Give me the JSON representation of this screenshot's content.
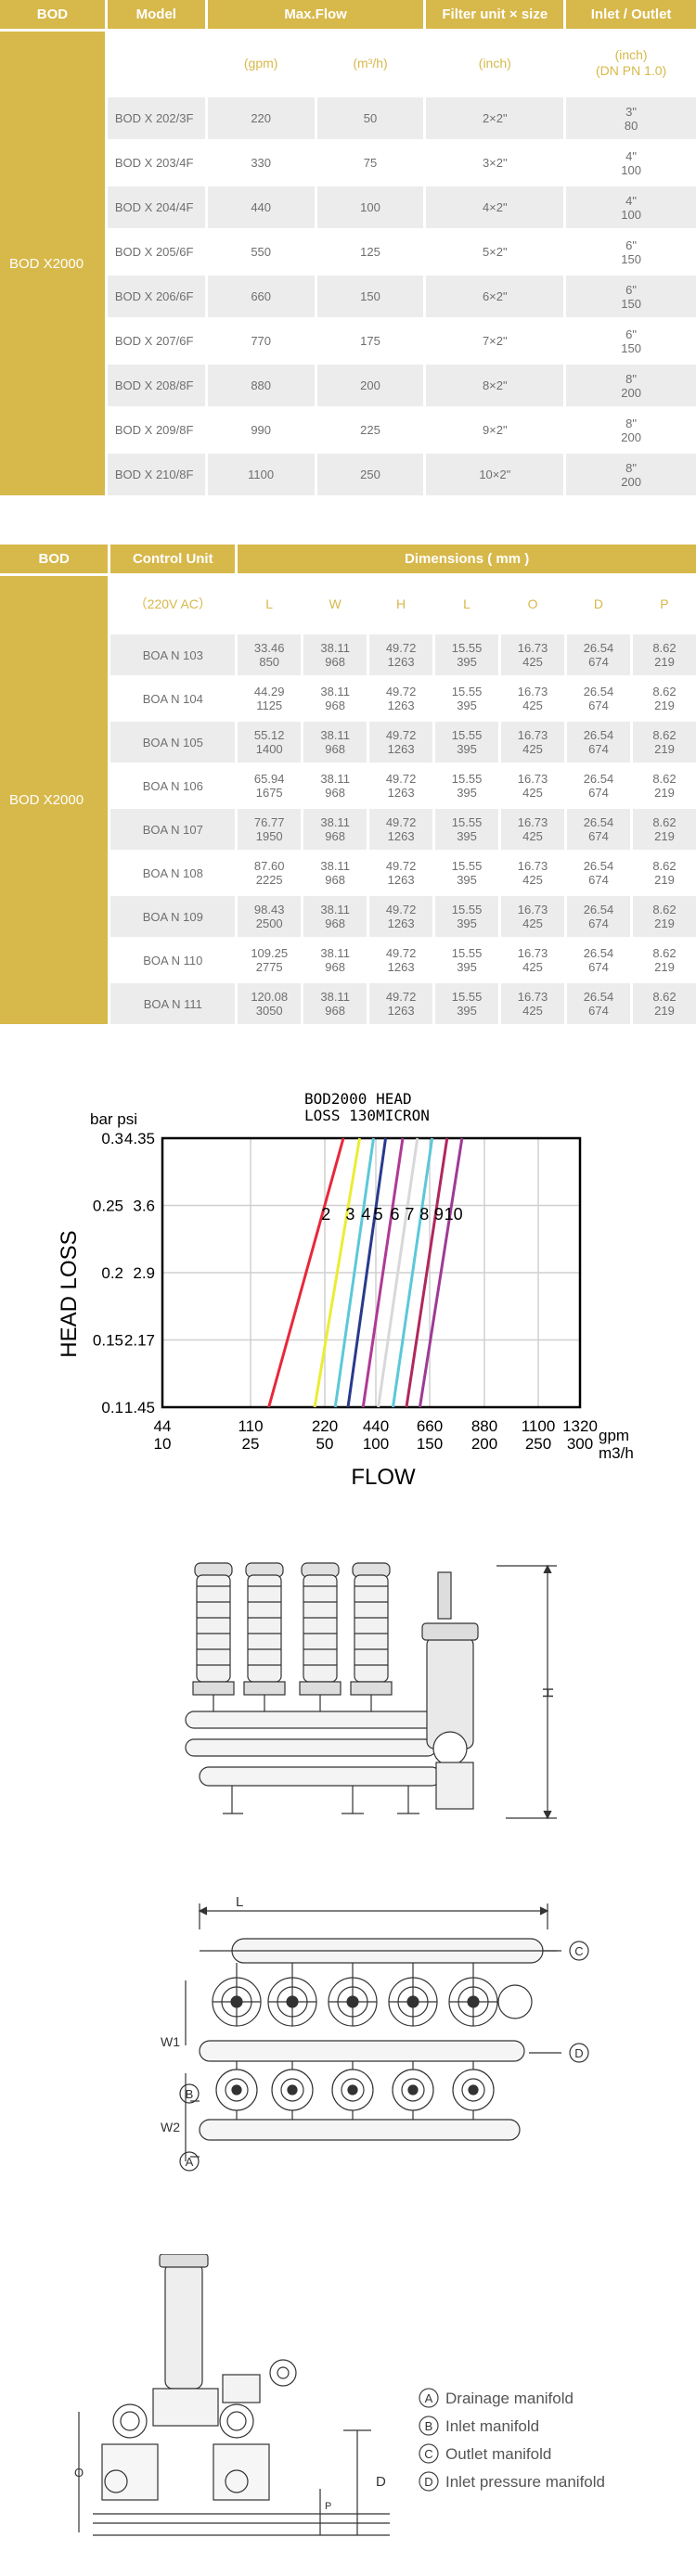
{
  "table1": {
    "headers": [
      "BOD",
      "Model",
      "Max.Flow",
      "Filter unit × size",
      "Inlet / Outlet"
    ],
    "side_label": "BOD X2000",
    "units": [
      "(gpm)",
      "(m³/h)",
      "(inch)",
      "(inch)",
      "(DN PN 1.0)"
    ],
    "rows": [
      {
        "model": "BOD X 202/3F",
        "gpm": "220",
        "m3h": "50",
        "size": "2×2\"",
        "inlet1": "3\"",
        "inlet2": "80"
      },
      {
        "model": "BOD X 203/4F",
        "gpm": "330",
        "m3h": "75",
        "size": "3×2\"",
        "inlet1": "4\"",
        "inlet2": "100"
      },
      {
        "model": "BOD X 204/4F",
        "gpm": "440",
        "m3h": "100",
        "size": "4×2\"",
        "inlet1": "4\"",
        "inlet2": "100"
      },
      {
        "model": "BOD X 205/6F",
        "gpm": "550",
        "m3h": "125",
        "size": "5×2\"",
        "inlet1": "6\"",
        "inlet2": "150"
      },
      {
        "model": "BOD X 206/6F",
        "gpm": "660",
        "m3h": "150",
        "size": "6×2\"",
        "inlet1": "6\"",
        "inlet2": "150"
      },
      {
        "model": "BOD X 207/6F",
        "gpm": "770",
        "m3h": "175",
        "size": "7×2\"",
        "inlet1": "6\"",
        "inlet2": "150"
      },
      {
        "model": "BOD X 208/8F",
        "gpm": "880",
        "m3h": "200",
        "size": "8×2\"",
        "inlet1": "8\"",
        "inlet2": "200"
      },
      {
        "model": "BOD X 209/8F",
        "gpm": "990",
        "m3h": "225",
        "size": "9×2\"",
        "inlet1": "8\"",
        "inlet2": "200"
      },
      {
        "model": "BOD X 210/8F",
        "gpm": "1100",
        "m3h": "250",
        "size": "10×2\"",
        "inlet1": "8\"",
        "inlet2": "200"
      }
    ]
  },
  "table2": {
    "headers": [
      "BOD",
      "Control Unit",
      "Dimensions ( mm )"
    ],
    "side_label": "BOD X2000",
    "unit_label": "（220V AC）",
    "cols": [
      "L",
      "W",
      "H",
      "L",
      "O",
      "D",
      "P"
    ],
    "rows": [
      {
        "unit": "BOA N 103",
        "vals": [
          [
            "33.46",
            "850"
          ],
          [
            "38.11",
            "968"
          ],
          [
            "49.72",
            "1263"
          ],
          [
            "15.55",
            "395"
          ],
          [
            "16.73",
            "425"
          ],
          [
            "26.54",
            "674"
          ],
          [
            "8.62",
            "219"
          ]
        ]
      },
      {
        "unit": "BOA N 104",
        "vals": [
          [
            "44.29",
            "1125"
          ],
          [
            "38.11",
            "968"
          ],
          [
            "49.72",
            "1263"
          ],
          [
            "15.55",
            "395"
          ],
          [
            "16.73",
            "425"
          ],
          [
            "26.54",
            "674"
          ],
          [
            "8.62",
            "219"
          ]
        ]
      },
      {
        "unit": "BOA N 105",
        "vals": [
          [
            "55.12",
            "1400"
          ],
          [
            "38.11",
            "968"
          ],
          [
            "49.72",
            "1263"
          ],
          [
            "15.55",
            "395"
          ],
          [
            "16.73",
            "425"
          ],
          [
            "26.54",
            "674"
          ],
          [
            "8.62",
            "219"
          ]
        ]
      },
      {
        "unit": "BOA N 106",
        "vals": [
          [
            "65.94",
            "1675"
          ],
          [
            "38.11",
            "968"
          ],
          [
            "49.72",
            "1263"
          ],
          [
            "15.55",
            "395"
          ],
          [
            "16.73",
            "425"
          ],
          [
            "26.54",
            "674"
          ],
          [
            "8.62",
            "219"
          ]
        ]
      },
      {
        "unit": "BOA N 107",
        "vals": [
          [
            "76.77",
            "1950"
          ],
          [
            "38.11",
            "968"
          ],
          [
            "49.72",
            "1263"
          ],
          [
            "15.55",
            "395"
          ],
          [
            "16.73",
            "425"
          ],
          [
            "26.54",
            "674"
          ],
          [
            "8.62",
            "219"
          ]
        ]
      },
      {
        "unit": "BOA N 108",
        "vals": [
          [
            "87.60",
            "2225"
          ],
          [
            "38.11",
            "968"
          ],
          [
            "49.72",
            "1263"
          ],
          [
            "15.55",
            "395"
          ],
          [
            "16.73",
            "425"
          ],
          [
            "26.54",
            "674"
          ],
          [
            "8.62",
            "219"
          ]
        ]
      },
      {
        "unit": "BOA N 109",
        "vals": [
          [
            "98.43",
            "2500"
          ],
          [
            "38.11",
            "968"
          ],
          [
            "49.72",
            "1263"
          ],
          [
            "15.55",
            "395"
          ],
          [
            "16.73",
            "425"
          ],
          [
            "26.54",
            "674"
          ],
          [
            "8.62",
            "219"
          ]
        ]
      },
      {
        "unit": "BOA N 110",
        "vals": [
          [
            "109.25",
            "2775"
          ],
          [
            "38.11",
            "968"
          ],
          [
            "49.72",
            "1263"
          ],
          [
            "15.55",
            "395"
          ],
          [
            "16.73",
            "425"
          ],
          [
            "26.54",
            "674"
          ],
          [
            "8.62",
            "219"
          ]
        ]
      },
      {
        "unit": "BOA N 111",
        "vals": [
          [
            "120.08",
            "3050"
          ],
          [
            "38.11",
            "968"
          ],
          [
            "49.72",
            "1263"
          ],
          [
            "15.55",
            "395"
          ],
          [
            "16.73",
            "425"
          ],
          [
            "26.54",
            "674"
          ],
          [
            "8.62",
            "219"
          ]
        ]
      }
    ]
  },
  "chart_data": {
    "type": "line",
    "title": "BOD2000 HEAD LOSS 130MICRON",
    "title_line1": "BOD2000 HEAD",
    "title_line2": "LOSS 130MICRON",
    "xlabel": "FLOW",
    "ylabel": "HEAD LOSS",
    "y_units": "bar psi",
    "x_units_gpm": "gpm",
    "x_units_m3h": "m3/h",
    "y_ticks": [
      [
        "0.3",
        "4.35"
      ],
      [
        "0.25",
        "3.6"
      ],
      [
        "0.2",
        "2.9"
      ],
      [
        "0.15",
        "2.17"
      ],
      [
        "0.1",
        "1.45"
      ]
    ],
    "y_tick_values": [
      0.3,
      0.25,
      0.2,
      0.15,
      0.1
    ],
    "x_ticks": [
      [
        "44",
        "10"
      ],
      [
        "110",
        "25"
      ],
      [
        "220",
        "50"
      ],
      [
        "440",
        "100"
      ],
      [
        "660",
        "150"
      ],
      [
        "880",
        "200"
      ],
      [
        "1100",
        "250"
      ],
      [
        "1320",
        "300"
      ]
    ],
    "ylim": [
      0.1,
      0.3
    ],
    "grid": true,
    "series": [
      {
        "name": "2",
        "color": "#e8283c",
        "x_gpm": [
          137,
          300
        ]
      },
      {
        "name": "3",
        "color": "#ecec34",
        "x_gpm": [
          205,
          370
        ]
      },
      {
        "name": "4",
        "color": "#5bc8d8",
        "x_gpm": [
          265,
          430
        ]
      },
      {
        "name": "5",
        "color": "#283a8c",
        "x_gpm": [
          320,
          480
        ]
      },
      {
        "name": "6",
        "color": "#b03a94",
        "x_gpm": [
          385,
          550
        ]
      },
      {
        "name": "7",
        "color": "#d8d8d8",
        "x_gpm": [
          450,
          610
        ]
      },
      {
        "name": "8",
        "color": "#5bc8d8",
        "x_gpm": [
          510,
          670
        ]
      },
      {
        "name": "9",
        "color": "#b0285c",
        "x_gpm": [
          565,
          730
        ]
      },
      {
        "name": "10",
        "color": "#9e3a94",
        "x_gpm": [
          620,
          790
        ]
      }
    ]
  },
  "drawing1": {
    "dim_h": "H"
  },
  "drawing2": {
    "dim_l": "L",
    "dim_w1": "W1",
    "dim_w2": "W2",
    "tag_a": "A",
    "tag_b": "B",
    "tag_c": "C",
    "tag_d": "D"
  },
  "drawing3": {
    "dim_o": "O",
    "dim_d": "D",
    "dim_p": "P"
  },
  "legend": [
    {
      "tag": "A",
      "text": "Drainage manifold"
    },
    {
      "tag": "B",
      "text": "Inlet manifold"
    },
    {
      "tag": "C",
      "text": "Outlet manifold"
    },
    {
      "tag": "D",
      "text": "Inlet pressure manifold"
    }
  ],
  "colors": {
    "gold": "#d7b84a",
    "row_alt": "#ececec"
  }
}
